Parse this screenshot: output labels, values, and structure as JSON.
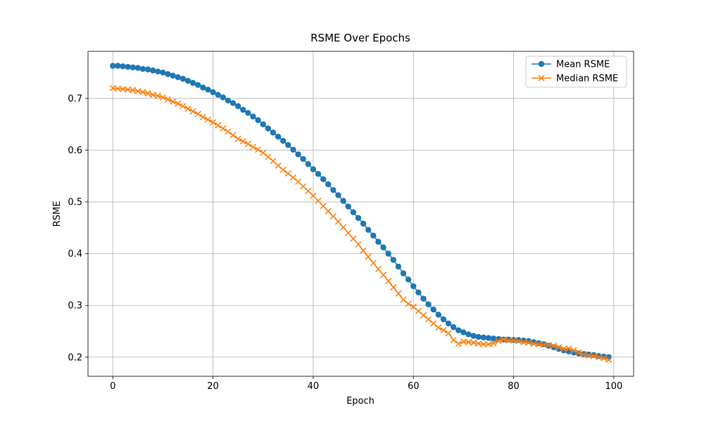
{
  "chart_data": {
    "type": "line",
    "title": "RSME Over Epochs",
    "xlabel": "Epoch",
    "ylabel": "RSME",
    "x": [
      0,
      1,
      2,
      3,
      4,
      5,
      6,
      7,
      8,
      9,
      10,
      11,
      12,
      13,
      14,
      15,
      16,
      17,
      18,
      19,
      20,
      21,
      22,
      23,
      24,
      25,
      26,
      27,
      28,
      29,
      30,
      31,
      32,
      33,
      34,
      35,
      36,
      37,
      38,
      39,
      40,
      41,
      42,
      43,
      44,
      45,
      46,
      47,
      48,
      49,
      50,
      51,
      52,
      53,
      54,
      55,
      56,
      57,
      58,
      59,
      60,
      61,
      62,
      63,
      64,
      65,
      66,
      67,
      68,
      69,
      70,
      71,
      72,
      73,
      74,
      75,
      76,
      77,
      78,
      79,
      80,
      81,
      82,
      83,
      84,
      85,
      86,
      87,
      88,
      89,
      90,
      91,
      92,
      93,
      94,
      95,
      96,
      97,
      98,
      99
    ],
    "series": [
      {
        "name": "Mean RSME",
        "color": "#1f77b4",
        "marker": "o",
        "values": [
          0.763,
          0.763,
          0.762,
          0.761,
          0.76,
          0.759,
          0.757,
          0.756,
          0.754,
          0.752,
          0.75,
          0.747,
          0.744,
          0.741,
          0.738,
          0.734,
          0.73,
          0.726,
          0.721,
          0.717,
          0.712,
          0.707,
          0.702,
          0.696,
          0.691,
          0.685,
          0.678,
          0.672,
          0.665,
          0.658,
          0.65,
          0.642,
          0.634,
          0.626,
          0.618,
          0.61,
          0.601,
          0.592,
          0.583,
          0.573,
          0.563,
          0.554,
          0.544,
          0.534,
          0.523,
          0.513,
          0.502,
          0.491,
          0.48,
          0.469,
          0.458,
          0.446,
          0.435,
          0.423,
          0.412,
          0.4,
          0.388,
          0.375,
          0.362,
          0.35,
          0.337,
          0.325,
          0.313,
          0.302,
          0.292,
          0.282,
          0.273,
          0.265,
          0.258,
          0.252,
          0.248,
          0.244,
          0.241,
          0.239,
          0.238,
          0.237,
          0.236,
          0.235,
          0.234,
          0.234,
          0.233,
          0.233,
          0.232,
          0.231,
          0.229,
          0.227,
          0.225,
          0.222,
          0.219,
          0.216,
          0.213,
          0.211,
          0.209,
          0.207,
          0.206,
          0.205,
          0.204,
          0.202,
          0.201,
          0.2
        ]
      },
      {
        "name": "Median RSME",
        "color": "#ff7f0e",
        "marker": "x",
        "values": [
          0.72,
          0.719,
          0.718,
          0.717,
          0.716,
          0.714,
          0.712,
          0.71,
          0.707,
          0.705,
          0.702,
          0.698,
          0.694,
          0.69,
          0.685,
          0.68,
          0.675,
          0.67,
          0.664,
          0.659,
          0.654,
          0.648,
          0.642,
          0.636,
          0.629,
          0.622,
          0.617,
          0.612,
          0.606,
          0.601,
          0.595,
          0.587,
          0.579,
          0.57,
          0.562,
          0.555,
          0.547,
          0.539,
          0.53,
          0.521,
          0.512,
          0.502,
          0.492,
          0.482,
          0.472,
          0.462,
          0.451,
          0.44,
          0.429,
          0.418,
          0.406,
          0.394,
          0.382,
          0.37,
          0.359,
          0.347,
          0.335,
          0.323,
          0.311,
          0.303,
          0.297,
          0.289,
          0.281,
          0.273,
          0.265,
          0.257,
          0.252,
          0.246,
          0.233,
          0.226,
          0.23,
          0.229,
          0.228,
          0.226,
          0.225,
          0.225,
          0.227,
          0.231,
          0.234,
          0.232,
          0.232,
          0.231,
          0.229,
          0.228,
          0.226,
          0.225,
          0.224,
          0.223,
          0.222,
          0.219,
          0.216,
          0.217,
          0.213,
          0.209,
          0.205,
          0.203,
          0.202,
          0.2,
          0.198,
          0.195
        ]
      }
    ],
    "xlim": [
      -4.95,
      103.95
    ],
    "ylim": [
      0.163,
      0.791
    ],
    "xticks": [
      0,
      20,
      40,
      60,
      80,
      100
    ],
    "yticks": [
      0.2,
      0.3,
      0.4,
      0.5,
      0.6,
      0.7
    ],
    "grid": true,
    "legend": "upper right"
  }
}
